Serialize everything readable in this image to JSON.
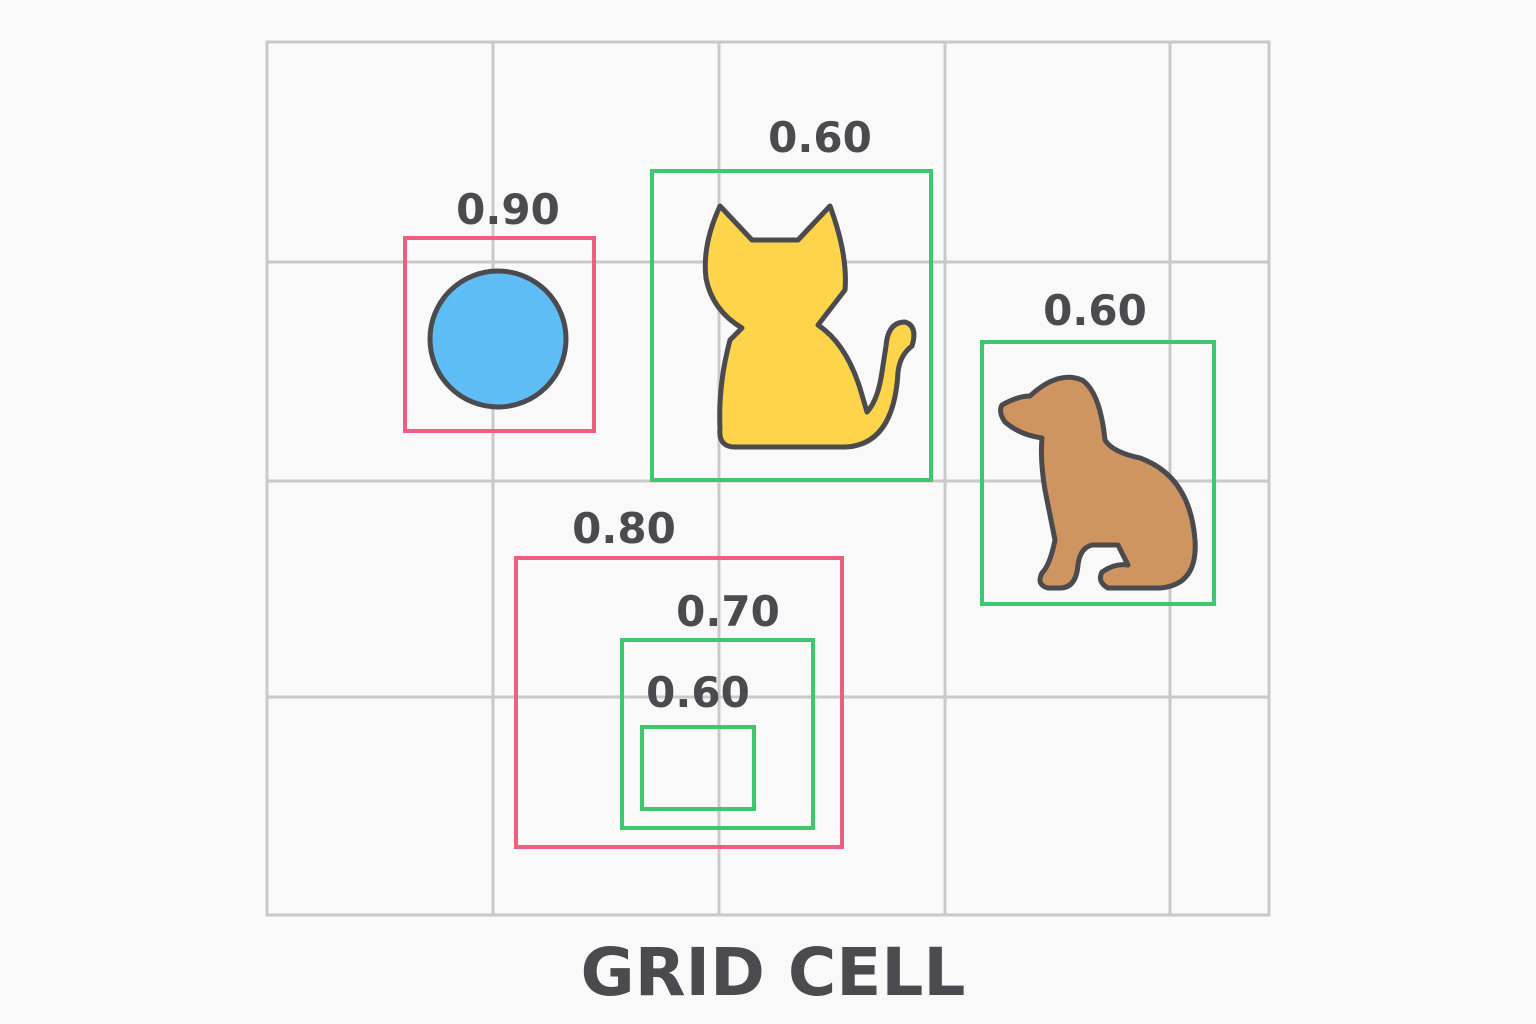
{
  "caption": "GRID CELL",
  "colors": {
    "background": "#f9f9f9",
    "grid": "#c9c9c9",
    "box_red": "#ec5f81",
    "box_green": "#3fc76f",
    "ball": "#5fbdf6",
    "cat": "#fdd44a",
    "dog": "#cf9560",
    "outline": "#4a4a4f"
  },
  "objects": [
    {
      "name": "ball",
      "icon": "circle-icon",
      "score": "0.90",
      "box_color": "red"
    },
    {
      "name": "cat",
      "icon": "cat-icon",
      "score": "0.60",
      "box_color": "green"
    },
    {
      "name": "dog",
      "icon": "dog-icon",
      "score": "0.60",
      "box_color": "green"
    }
  ],
  "nested_boxes": [
    {
      "score": "0.80",
      "box_color": "red"
    },
    {
      "score": "0.70",
      "box_color": "green"
    },
    {
      "score": "0.60",
      "box_color": "green"
    }
  ]
}
